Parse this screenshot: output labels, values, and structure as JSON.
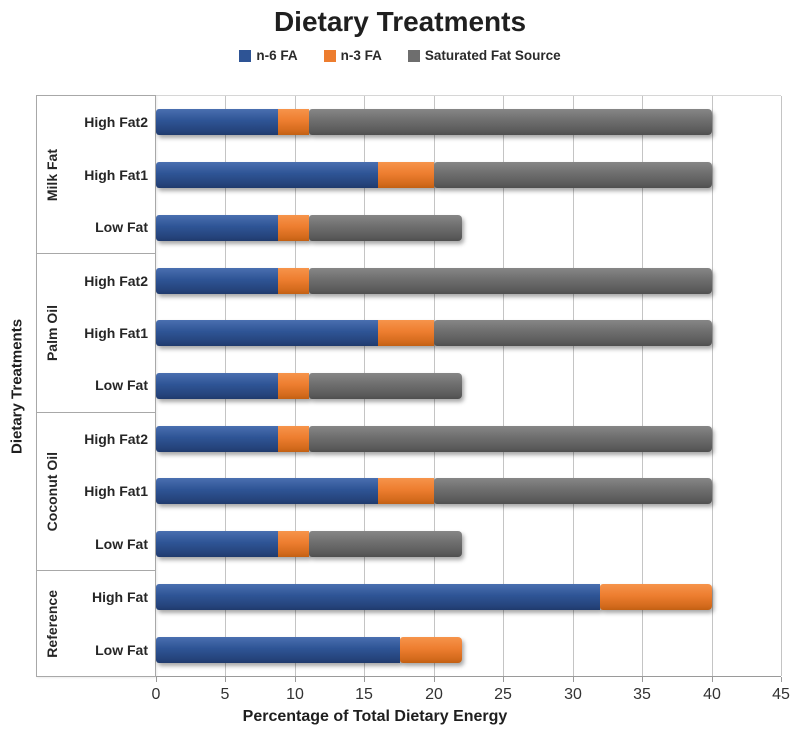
{
  "title": "Dietary Treatments",
  "legend": [
    {
      "label": "n-6 FA",
      "color": "#2e5495",
      "icon": "legend-swatch-blue"
    },
    {
      "label": "n-3 FA",
      "color": "#ed7d2f",
      "icon": "legend-swatch-orange"
    },
    {
      "label": "Saturated Fat Source",
      "color": "#6e6e6e",
      "icon": "legend-swatch-gray"
    }
  ],
  "chart_data": {
    "type": "bar",
    "orientation": "horizontal-stacked",
    "title": "Dietary Treatments",
    "xlabel": "Percentage of Total Dietary Energy",
    "ylabel": "Dietary Treatments",
    "xlim": [
      0,
      45
    ],
    "xticks": [
      0,
      5,
      10,
      15,
      20,
      25,
      30,
      35,
      40,
      45
    ],
    "grid": "vertical",
    "legend_position": "top",
    "series_names": [
      "n-6 FA",
      "n-3 FA",
      "Saturated Fat Source"
    ],
    "series_colors": [
      "#2e5495",
      "#ed7d2f",
      "#6e6e6e"
    ],
    "groups": [
      {
        "name": "Milk Fat",
        "rows": [
          {
            "label": "High Fat2",
            "values": [
              8.8,
              2.2,
              29
            ]
          },
          {
            "label": "High Fat1",
            "values": [
              16,
              4,
              20
            ]
          },
          {
            "label": "Low Fat",
            "values": [
              8.8,
              2.2,
              11
            ]
          }
        ]
      },
      {
        "name": "Palm Oil",
        "rows": [
          {
            "label": "High Fat2",
            "values": [
              8.8,
              2.2,
              29
            ]
          },
          {
            "label": "High Fat1",
            "values": [
              16,
              4,
              20
            ]
          },
          {
            "label": "Low Fat",
            "values": [
              8.8,
              2.2,
              11
            ]
          }
        ]
      },
      {
        "name": "Coconut Oil",
        "rows": [
          {
            "label": "High Fat2",
            "values": [
              8.8,
              2.2,
              29
            ]
          },
          {
            "label": "High Fat1",
            "values": [
              16,
              4,
              20
            ]
          },
          {
            "label": "Low Fat",
            "values": [
              8.8,
              2.2,
              11
            ]
          }
        ]
      },
      {
        "name": "Reference",
        "rows": [
          {
            "label": "High Fat",
            "values": [
              32,
              8,
              0
            ]
          },
          {
            "label": "Low Fat",
            "values": [
              17.6,
              4.4,
              0
            ]
          }
        ]
      }
    ]
  }
}
